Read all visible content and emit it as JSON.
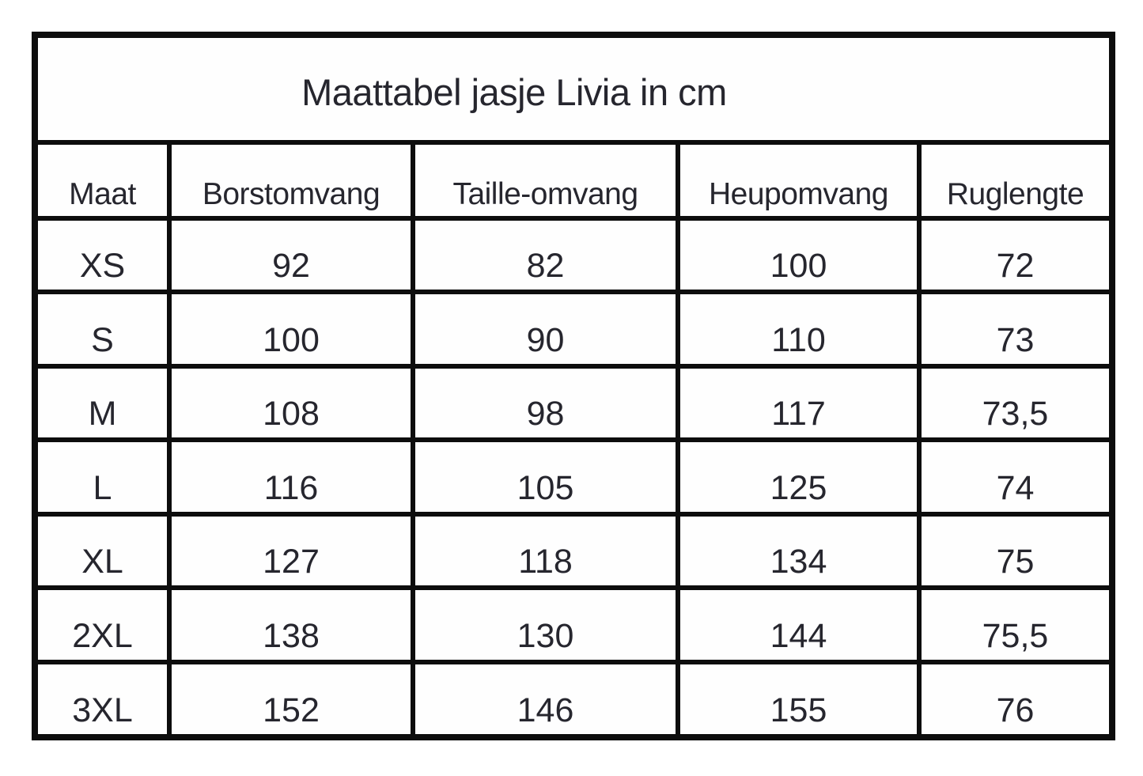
{
  "table": {
    "title": "Maattabel jasje Livia in cm",
    "columns": [
      "Maat",
      "Borstomvang",
      "Taille-omvang",
      "Heupomvang",
      "Ruglengte"
    ],
    "rows": [
      [
        "XS",
        "92",
        "82",
        "100",
        "72"
      ],
      [
        "S",
        "100",
        "90",
        "110",
        "73"
      ],
      [
        "M",
        "108",
        "98",
        "117",
        "73,5"
      ],
      [
        "L",
        "116",
        "105",
        "125",
        "74"
      ],
      [
        "XL",
        "127",
        "118",
        "134",
        "75"
      ],
      [
        "2XL",
        "138",
        "130",
        "144",
        "75,5"
      ],
      [
        "3XL",
        "152",
        "146",
        "155",
        "76"
      ]
    ]
  },
  "chart_data": {
    "type": "table",
    "title": "Maattabel jasje Livia in cm",
    "units": "cm",
    "columns": [
      "Maat",
      "Borstomvang",
      "Taille-omvang",
      "Heupomvang",
      "Ruglengte"
    ],
    "rows": [
      [
        "XS",
        92,
        82,
        100,
        72
      ],
      [
        "S",
        100,
        90,
        110,
        73
      ],
      [
        "M",
        108,
        98,
        117,
        73.5
      ],
      [
        "L",
        116,
        105,
        125,
        74
      ],
      [
        "XL",
        127,
        118,
        134,
        75
      ],
      [
        "2XL",
        138,
        130,
        144,
        75.5
      ],
      [
        "3XL",
        152,
        146,
        155,
        76
      ]
    ]
  },
  "colors": {
    "border": "#0d0d0d",
    "text": "#26262e",
    "background": "#ffffff"
  }
}
